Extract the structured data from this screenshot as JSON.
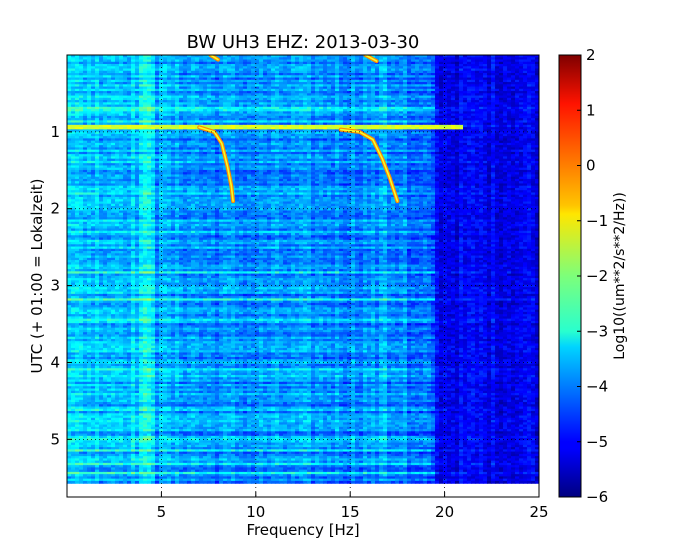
{
  "chart_data": {
    "type": "heatmap",
    "title": "BW UH3 EHZ: 2013-03-30",
    "xlabel": "Frequency [Hz]",
    "ylabel": "UTC (+ 01:00 = Lokalzeit)",
    "xlim": [
      0,
      25
    ],
    "ylim": [
      5.75,
      0
    ],
    "x_ticks": [
      "5",
      "10",
      "15",
      "20",
      "25"
    ],
    "y_ticks": [
      "1",
      "2",
      "3",
      "4",
      "5"
    ],
    "data_extent_hours": [
      0,
      5.57
    ],
    "colorbar": {
      "label": "Log10((um**2/s**2/Hz))",
      "range": [
        -6,
        2
      ],
      "ticks": [
        "2",
        "1",
        "0",
        "−1",
        "−2",
        "−3",
        "−4",
        "−5",
        "−6"
      ],
      "colormap": "jet"
    },
    "grid": "dotted at tick positions",
    "features": {
      "broadband_bands_hz": [
        [
          0.2,
          4.6
        ],
        [
          4.0,
          4.6
        ]
      ],
      "high_freq_cutoff_hz": 19.5,
      "narrow_lines_hz": [
        5.0,
        16.8
      ],
      "strong_line_hour": 0.94,
      "gliding_tones": [
        {
          "points": [
            [
              7.6,
              0.0
            ],
            [
              8.0,
              0.06
            ]
          ]
        },
        {
          "points": [
            [
              15.8,
              0.0
            ],
            [
              16.4,
              0.08
            ]
          ]
        },
        {
          "points": [
            [
              7.0,
              0.94
            ],
            [
              7.8,
              1.0
            ],
            [
              8.2,
              1.15
            ],
            [
              8.5,
              1.45
            ],
            [
              8.7,
              1.7
            ],
            [
              8.8,
              1.9
            ]
          ]
        },
        {
          "points": [
            [
              14.5,
              0.97
            ],
            [
              15.5,
              1.0
            ],
            [
              16.2,
              1.1
            ],
            [
              16.7,
              1.35
            ],
            [
              17.1,
              1.6
            ],
            [
              17.5,
              1.9
            ]
          ]
        }
      ]
    }
  }
}
